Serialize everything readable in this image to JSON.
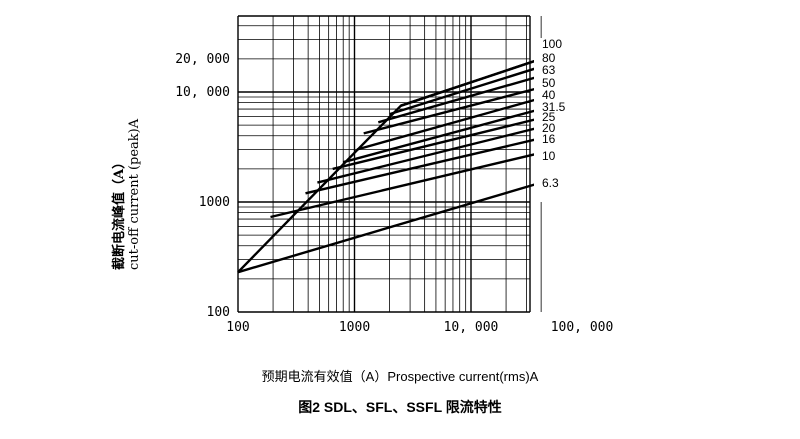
{
  "chart_data": {
    "type": "line",
    "x_scale": "log",
    "y_scale": "log",
    "xlim": [
      100,
      40000
    ],
    "ylim": [
      100,
      40000
    ],
    "xlabel": "预期电流有效值（A）Prospective current(rms)A",
    "ylabel_cn": "截断电流峰值（A）",
    "ylabel_en": "cut-off current (peak)A",
    "caption": "图2 SDL、SFL、SSFL 限流特性",
    "x_tick_labels": [
      "100",
      "1000",
      "10, 000",
      "100, 000"
    ],
    "y_tick_labels": [
      "100",
      "1000",
      "10, 000",
      "20, 000"
    ],
    "grid": true,
    "limit_line": {
      "x": [
        100,
        1000,
        2500,
        40000
      ],
      "y": [
        230,
        2800,
        7500,
        20000
      ]
    },
    "series": [
      {
        "name": "100",
        "x": [
          2500,
          40000
        ],
        "y": [
          7500,
          20000
        ]
      },
      {
        "name": "80",
        "x": [
          2000,
          40000
        ],
        "y": [
          6300,
          17000
        ]
      },
      {
        "name": "63",
        "x": [
          1600,
          40000
        ],
        "y": [
          5300,
          14000
        ]
      },
      {
        "name": "50",
        "x": [
          1200,
          40000
        ],
        "y": [
          4200,
          11000
        ]
      },
      {
        "name": "40",
        "x": [
          1050,
          40000
        ],
        "y": [
          3000,
          8800
        ]
      },
      {
        "name": "31.5",
        "x": [
          800,
          40000
        ],
        "y": [
          2300,
          7000
        ]
      },
      {
        "name": "25",
        "x": [
          650,
          40000
        ],
        "y": [
          2000,
          5800
        ]
      },
      {
        "name": "20",
        "x": [
          480,
          40000
        ],
        "y": [
          1500,
          4800
        ]
      },
      {
        "name": "16",
        "x": [
          380,
          40000
        ],
        "y": [
          1200,
          3800
        ]
      },
      {
        "name": "10",
        "x": [
          190,
          40000
        ],
        "y": [
          730,
          2800
        ]
      },
      {
        "name": "6.3",
        "x": [
          100,
          40000
        ],
        "y": [
          230,
          1500
        ]
      }
    ]
  }
}
